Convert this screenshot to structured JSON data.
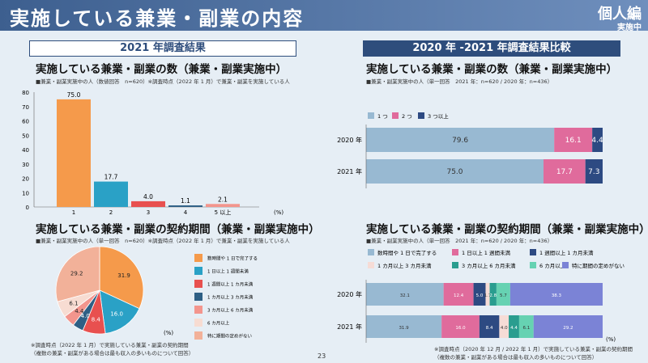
{
  "header": {
    "title": "実施している兼業・副業の内容",
    "badge_main": "個人編",
    "badge_sub": "実施中"
  },
  "left": {
    "section_title": "2021 年調査結果",
    "count_title": "実施している兼業・副業の数（兼業・副業実施中）",
    "count_note": "■兼業・副業実施中の人（数値回答　n=620）※調査時点（2022 年 1 月）で兼業・副業を実施している人",
    "period_title": "実施している兼業・副業の契約期間（兼業・副業実施中）",
    "period_note": "■兼業・副業実施中の人（単一回答　n=620）※調査時点（2022 年 1 月）で兼業・副業を実施している人",
    "footnote1": "※調査時点（2022 年 1 月）で実施している兼業・副業の契約期間",
    "footnote2": "（複数の兼業・副業がある場合は最も収入の多いものについて回答）"
  },
  "right": {
    "section_title": "2020 年 -2021 年調査結果比較",
    "count_title": "実施している兼業・副業の数（兼業・副業実施中）",
    "count_note": "■兼業・副業実施中の人（単一回答　2021 年：n=620 / 2020 年：n=436）",
    "period_title": "実施している兼業・副業の契約期間（兼業・副業実施中）",
    "period_note": "■兼業・副業実施中の人（単一回答　2021 年：n=620 / 2020 年：n=436）",
    "footnote1": "※調査時点（2020 年 12 月 / 2022 年 1 月）で実施している兼業・副業の契約期間",
    "footnote2": "（複数の兼業・副業がある場合は最も収入の多いものについて回答）"
  },
  "page_number": "23",
  "chart_data": [
    {
      "type": "bar",
      "title": "実施している兼業・副業の数（兼業・副業実施中）",
      "categories": [
        "1",
        "2",
        "3",
        "4",
        "5 以上"
      ],
      "values": [
        75.0,
        17.7,
        4.0,
        1.1,
        2.1
      ],
      "labels": [
        "75.0",
        "17.7",
        "4.0",
        "1.1",
        "2.1"
      ],
      "colors": [
        "#f59a4b",
        "#2aa1c6",
        "#e8504f",
        "#2e5f85",
        "#f3958d"
      ],
      "yticks": [
        0,
        10,
        20,
        30,
        40,
        50,
        60,
        70,
        80
      ],
      "ylim": [
        0,
        80
      ],
      "unit": "(%)"
    },
    {
      "type": "pie",
      "title": "実施している兼業・副業の契約期間（兼業・副業実施中）",
      "slices": [
        {
          "label": "数時間や 1 日で完了する",
          "value": 31.9,
          "text": "31.9",
          "color": "#f59a4b"
        },
        {
          "label": "1 日以上 1 週間未満",
          "value": 16.0,
          "text": "16.0",
          "color": "#2aa1c6"
        },
        {
          "label": "1 週間以上 1 カ月未満",
          "value": 8.4,
          "text": "8.4",
          "color": "#e8504f"
        },
        {
          "label": "1 カ月以上 3 カ月未満",
          "value": 4.0,
          "text": "4.0",
          "color": "#2e5f85"
        },
        {
          "label": "3 カ月以上 6 カ月未満",
          "value": 4.4,
          "text": "4.4",
          "color": "#f3958d"
        },
        {
          "label": "6 カ月以上",
          "value": 6.1,
          "text": "6.1",
          "color": "#f7dcd2"
        },
        {
          "label": "特に期間の定めがない",
          "value": 29.2,
          "text": "29.2",
          "color": "#f2b199"
        }
      ],
      "unit": "(%)"
    },
    {
      "type": "bar",
      "orientation": "stacked-horizontal",
      "title": "実施している兼業・副業の数（兼業・副業実施中）",
      "categories": [
        "2020 年",
        "2021 年"
      ],
      "series": [
        {
          "name": "1 つ",
          "values": [
            79.6,
            75.0
          ],
          "texts": [
            "79.6",
            "75.0"
          ],
          "color": "#98b9d2"
        },
        {
          "name": "2 つ",
          "values": [
            16.1,
            17.7
          ],
          "texts": [
            "16.1",
            "17.7"
          ],
          "color": "#e06b9c"
        },
        {
          "name": "3 つ以上",
          "values": [
            4.4,
            7.3
          ],
          "texts": [
            "4.4",
            "7.3"
          ],
          "color": "#2d4a82"
        }
      ]
    },
    {
      "type": "bar",
      "orientation": "stacked-horizontal",
      "title": "実施している兼業・副業の契約期間（兼業・副業実施中）",
      "categories": [
        "2020 年",
        "2021 年"
      ],
      "series": [
        {
          "name": "数時間や 1 日で完了する",
          "values": [
            32.1,
            31.9
          ],
          "texts": [
            "32.1",
            "31.9"
          ],
          "color": "#98b9d2"
        },
        {
          "name": "1 日以上 1 週間未満",
          "values": [
            12.4,
            16.0
          ],
          "texts": [
            "12.4",
            "16.0"
          ],
          "color": "#e06b9c"
        },
        {
          "name": "1 週間以上 1 カ月未満",
          "values": [
            5.0,
            8.4
          ],
          "texts": [
            "5.0",
            "8.4"
          ],
          "color": "#2d4a82"
        },
        {
          "name": "1 カ月以上 3 カ月未満",
          "values": [
            1.7,
            4.0
          ],
          "texts": [
            "1.7",
            "4.0"
          ],
          "color": "#f6dcd6"
        },
        {
          "name": "3 カ月以上 6 カ月未満",
          "values": [
            2.8,
            4.4
          ],
          "texts": [
            "2.8",
            "4.4"
          ],
          "color": "#2a9d8f"
        },
        {
          "name": "6 カ月以上",
          "values": [
            5.7,
            6.1
          ],
          "texts": [
            "5.7",
            "6.1"
          ],
          "color": "#66d2b2"
        },
        {
          "name": "特に期間の定めがない",
          "values": [
            38.3,
            29.2
          ],
          "texts": [
            "38.3",
            "29.2"
          ],
          "color": "#7b83d6"
        }
      ],
      "unit": "(%)"
    }
  ]
}
